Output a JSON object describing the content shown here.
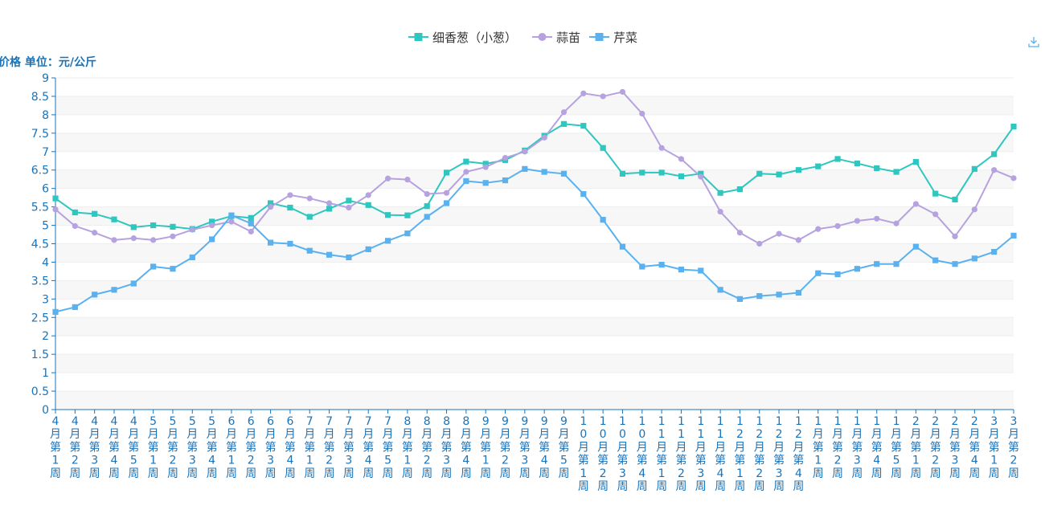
{
  "chart_data": {
    "type": "line",
    "ylabel": "价格 单位：元/公斤",
    "ylim": [
      0,
      9
    ],
    "yticks": [
      "0",
      "0.5",
      "1",
      "1.5",
      "2",
      "2.5",
      "3",
      "3.5",
      "4",
      "4.5",
      "5",
      "5.5",
      "6",
      "6.5",
      "7",
      "7.5",
      "8",
      "8.5",
      "9"
    ],
    "grid": "horizontal-bands",
    "legend_position": "top-center",
    "categories": [
      "4月第1周",
      "4月第2周",
      "4月第3周",
      "4月第4周",
      "4月第5周",
      "5月第1周",
      "5月第2周",
      "5月第3周",
      "5月第4周",
      "6月第1周",
      "6月第2周",
      "6月第3周",
      "6月第4周",
      "7月第1周",
      "7月第2周",
      "7月第3周",
      "7月第4周",
      "7月第5周",
      "8月第1周",
      "8月第2周",
      "8月第3周",
      "8月第4周",
      "9月第1周",
      "9月第2周",
      "9月第3周",
      "9月第4周",
      "9月第5周",
      "10月第1周",
      "10月第2周",
      "10月第3周",
      "10月第4周",
      "11月第1周",
      "11月第2周",
      "11月第3周",
      "11月第4周",
      "12月第1周",
      "12月第2周",
      "12月第3周",
      "12月第4周",
      "1月第1周",
      "1月第2周",
      "1月第3周",
      "1月第4周",
      "1月第5周",
      "2月第1周",
      "2月第2周",
      "2月第3周",
      "2月第4周",
      "3月第1周",
      "3月第2周"
    ],
    "series": [
      {
        "name": "细香葱（小葱）",
        "color": "#2ec7c0",
        "marker": "square",
        "values": [
          5.73,
          5.35,
          5.31,
          5.16,
          4.95,
          5.0,
          4.96,
          4.9,
          5.1,
          5.25,
          5.2,
          5.6,
          5.48,
          5.23,
          5.45,
          5.67,
          5.55,
          5.28,
          5.27,
          5.52,
          6.43,
          6.73,
          6.67,
          6.77,
          7.03,
          7.43,
          7.75,
          7.7,
          7.1,
          6.4,
          6.43,
          6.43,
          6.33,
          6.4,
          5.88,
          5.98,
          6.4,
          6.38,
          6.5,
          6.6,
          6.8,
          6.68,
          6.55,
          6.45,
          6.72,
          5.86,
          5.7,
          6.53,
          6.93,
          7.68
        ]
      },
      {
        "name": "蒜苗",
        "color": "#b6a2de",
        "marker": "circle",
        "values": [
          5.43,
          4.98,
          4.8,
          4.6,
          4.65,
          4.6,
          4.7,
          4.88,
          5.0,
          5.1,
          4.83,
          5.5,
          5.82,
          5.73,
          5.6,
          5.48,
          5.82,
          6.27,
          6.24,
          5.85,
          5.88,
          6.45,
          6.58,
          6.83,
          7.0,
          7.38,
          8.07,
          8.58,
          8.5,
          8.62,
          8.03,
          7.1,
          6.8,
          6.32,
          5.37,
          4.8,
          4.5,
          4.77,
          4.6,
          4.9,
          4.98,
          5.12,
          5.18,
          5.05,
          5.58,
          5.3,
          4.7,
          5.43,
          6.5,
          6.28
        ]
      },
      {
        "name": "芹菜",
        "color": "#5ab1ef",
        "marker": "square",
        "values": [
          2.65,
          2.78,
          3.12,
          3.25,
          3.42,
          3.88,
          3.82,
          4.13,
          4.62,
          5.27,
          5.05,
          4.53,
          4.5,
          4.31,
          4.2,
          4.13,
          4.35,
          4.58,
          4.78,
          5.23,
          5.6,
          6.2,
          6.15,
          6.22,
          6.53,
          6.45,
          6.4,
          5.85,
          5.15,
          4.42,
          3.88,
          3.93,
          3.8,
          3.77,
          3.25,
          3.0,
          3.08,
          3.12,
          3.17,
          3.7,
          3.67,
          3.82,
          3.95,
          3.95,
          4.42,
          4.05,
          3.95,
          4.1,
          4.28,
          4.72
        ]
      }
    ]
  }
}
